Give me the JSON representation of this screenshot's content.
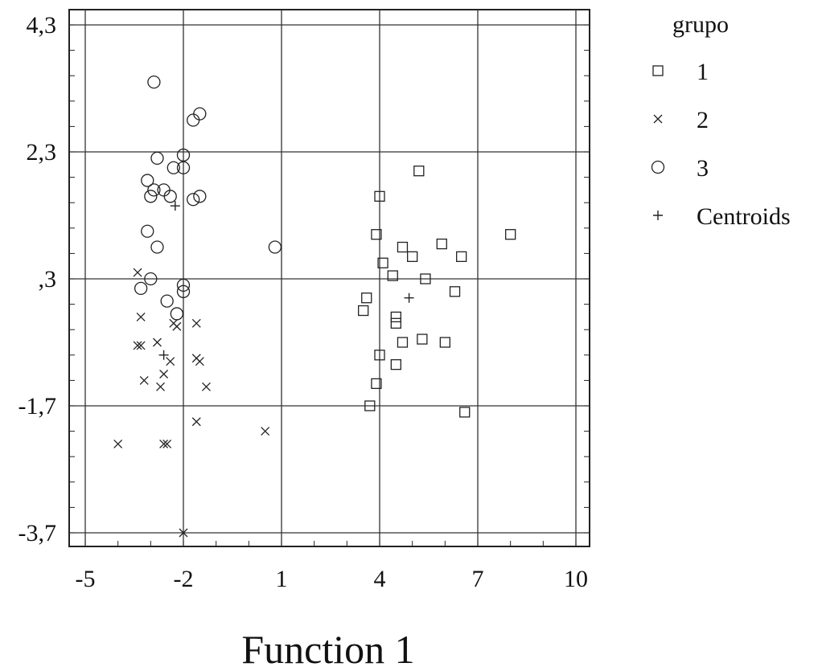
{
  "chart_data": {
    "type": "scatter",
    "title": "",
    "xlabel": "Function 1",
    "ylabel": "",
    "xlim": [
      -5.5,
      10.5
    ],
    "ylim": [
      -3.9,
      4.4
    ],
    "x_ticks": [
      -5,
      -2,
      1,
      4,
      7,
      10
    ],
    "x_tick_labels": [
      "-5",
      "-2",
      "1",
      "4",
      "7",
      "10"
    ],
    "y_ticks": [
      4.3,
      2.3,
      0.3,
      -1.7,
      -3.7
    ],
    "y_tick_labels": [
      "4,3",
      "2,3",
      ",3",
      "-1,7",
      "-3,7"
    ],
    "grid": true,
    "legend": {
      "title": "grupo",
      "position": "right"
    },
    "series": [
      {
        "name": "1",
        "marker": "square",
        "points": [
          [
            5.2,
            2.0
          ],
          [
            4.0,
            1.6
          ],
          [
            3.9,
            1.0
          ],
          [
            4.7,
            0.8
          ],
          [
            5.0,
            0.65
          ],
          [
            5.9,
            0.85
          ],
          [
            6.5,
            0.65
          ],
          [
            8.0,
            1.0
          ],
          [
            4.1,
            0.55
          ],
          [
            4.4,
            0.35
          ],
          [
            5.4,
            0.3
          ],
          [
            3.6,
            0.0
          ],
          [
            3.5,
            -0.2
          ],
          [
            4.5,
            -0.3
          ],
          [
            4.5,
            -0.4
          ],
          [
            6.3,
            0.1
          ],
          [
            4.7,
            -0.7
          ],
          [
            5.3,
            -0.65
          ],
          [
            6.0,
            -0.7
          ],
          [
            4.0,
            -0.9
          ],
          [
            4.5,
            -1.05
          ],
          [
            3.9,
            -1.35
          ],
          [
            3.7,
            -1.7
          ],
          [
            6.6,
            -1.8
          ]
        ]
      },
      {
        "name": "2",
        "marker": "x",
        "points": [
          [
            -3.4,
            0.4
          ],
          [
            -3.3,
            -0.3
          ],
          [
            -2.8,
            -0.7
          ],
          [
            -2.2,
            -0.45
          ],
          [
            -2.3,
            -0.4
          ],
          [
            -1.6,
            -0.4
          ],
          [
            -3.4,
            -0.75
          ],
          [
            -3.3,
            -0.75
          ],
          [
            -2.4,
            -1.0
          ],
          [
            -1.6,
            -0.95
          ],
          [
            -1.5,
            -1.0
          ],
          [
            -2.6,
            -1.2
          ],
          [
            -3.2,
            -1.3
          ],
          [
            -2.7,
            -1.4
          ],
          [
            -1.3,
            -1.4
          ],
          [
            -1.6,
            -1.95
          ],
          [
            0.5,
            -2.1
          ],
          [
            -4.0,
            -2.3
          ],
          [
            -2.6,
            -2.3
          ],
          [
            -2.5,
            -2.3
          ],
          [
            -2.0,
            -3.7
          ]
        ]
      },
      {
        "name": "3",
        "marker": "circle",
        "points": [
          [
            -2.9,
            3.4
          ],
          [
            -1.7,
            2.8
          ],
          [
            -1.5,
            2.9
          ],
          [
            -2.8,
            2.2
          ],
          [
            -2.0,
            2.25
          ],
          [
            -2.3,
            2.05
          ],
          [
            -2.0,
            2.05
          ],
          [
            -3.1,
            1.85
          ],
          [
            -2.9,
            1.7
          ],
          [
            -2.6,
            1.7
          ],
          [
            -3.0,
            1.6
          ],
          [
            -2.4,
            1.6
          ],
          [
            -1.7,
            1.55
          ],
          [
            -1.5,
            1.6
          ],
          [
            -3.1,
            1.05
          ],
          [
            -2.8,
            0.8
          ],
          [
            0.8,
            0.8
          ],
          [
            -3.0,
            0.3
          ],
          [
            -3.3,
            0.15
          ],
          [
            -2.0,
            0.2
          ],
          [
            -2.0,
            0.1
          ],
          [
            -2.5,
            -0.05
          ],
          [
            -2.2,
            -0.25
          ]
        ]
      },
      {
        "name": "Centroids",
        "marker": "plus",
        "points": [
          [
            4.9,
            0.0
          ],
          [
            -2.25,
            1.45
          ],
          [
            -2.6,
            -0.9
          ]
        ]
      }
    ]
  }
}
